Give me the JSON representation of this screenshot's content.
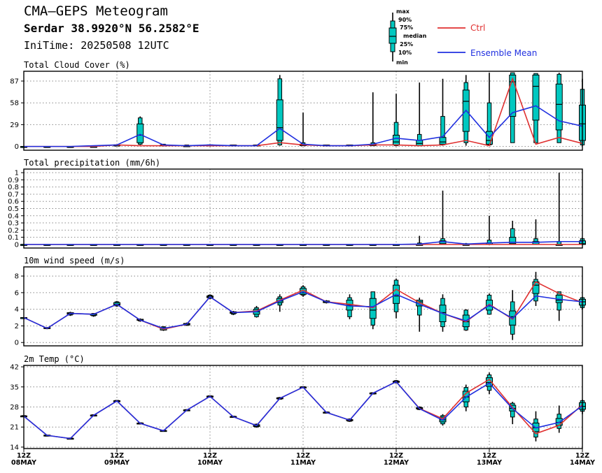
{
  "header": {
    "title": "CMA—GEPS Meteogram",
    "location": "Serdar 38.9920°N 56.2582°E",
    "init_time": "IniTime: 20250508 12UTC"
  },
  "legend": {
    "box_labels": [
      "max",
      "90%",
      "75%",
      "median",
      "25%",
      "10%",
      "min"
    ],
    "ctrl_label": "Ctrl",
    "mean_label": "Ensemble Mean",
    "ctrl_color": "#e03030",
    "mean_color": "#2030e0",
    "box_color": "#00c8c0"
  },
  "x_axis": {
    "ticks": [
      {
        "l1": "12Z",
        "l2": "08MAY",
        "step": 0
      },
      {
        "l1": "12Z",
        "l2": "09MAY",
        "step": 4
      },
      {
        "l1": "12Z",
        "l2": "10MAY",
        "step": 8
      },
      {
        "l1": "12Z",
        "l2": "11MAY",
        "step": 12
      },
      {
        "l1": "12Z",
        "l2": "12MAY",
        "step": 16
      },
      {
        "l1": "12Z",
        "l2": "13MAY",
        "step": 20
      },
      {
        "l1": "12Z",
        "l2": "14MAY",
        "step": 24
      }
    ]
  },
  "chart_data": [
    {
      "type": "box",
      "title": "Total Cloud Cover (%)",
      "yticks": [
        0,
        29,
        58,
        87
      ],
      "ylim": [
        -5,
        100
      ],
      "ctrl": [
        0,
        0,
        0,
        1,
        1,
        1,
        1,
        1,
        1,
        1,
        1,
        1,
        1,
        1,
        1,
        1,
        1,
        1,
        1,
        1,
        1,
        1,
        1,
        1,
        1,
        2,
        2,
        2,
        1,
        1,
        1,
        1,
        1,
        1,
        1,
        1,
        1,
        1,
        1,
        1,
        1,
        1,
        1,
        1,
        1,
        2,
        2,
        2,
        2,
        2,
        2,
        2,
        2,
        2,
        2,
        3,
        3,
        3,
        3,
        3,
        3,
        3,
        3,
        3,
        3,
        4,
        4,
        5,
        6,
        7,
        8,
        10,
        12,
        13,
        14,
        15,
        16,
        17
      ],
      "boxes": []
    },
    {
      "type": "box",
      "title": "Total precipitation (mm/6h)",
      "yticks": [
        0,
        0.1,
        0.2,
        0.3,
        0.4,
        0.5,
        0.6,
        0.7,
        0.8,
        0.9,
        1
      ],
      "ylim": [
        -0.05,
        1.05
      ],
      "boxes": []
    },
    {
      "type": "box",
      "title": "10m wind speed (m/s)",
      "yticks": [
        0,
        2,
        4,
        6,
        8
      ],
      "ylim": [
        -0.4,
        9.1
      ],
      "boxes": []
    },
    {
      "type": "box",
      "title": "2m Temp (°C)",
      "yticks": [
        14,
        21,
        28,
        35,
        42
      ],
      "ylim": [
        13.5,
        42.5
      ],
      "boxes": []
    }
  ]
}
